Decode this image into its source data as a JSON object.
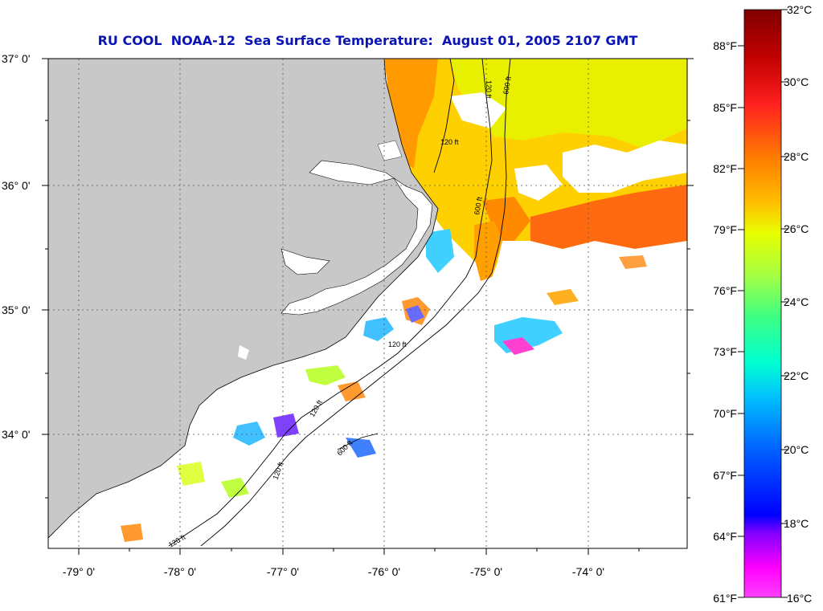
{
  "title": "RU COOL  NOAA-12  Sea Surface Temperature:  August 01, 2005 2107 GMT",
  "map": {
    "lat_ticks": [
      "37° 0'",
      "36° 0'",
      "35° 0'",
      "34° 0'"
    ],
    "lon_ticks": [
      "-79° 0'",
      "-78° 0'",
      "-77° 0'",
      "-76° 0'",
      "-75° 0'",
      "-74° 0'"
    ],
    "contour_labels": [
      "120 ft",
      "600 ft",
      "120 ft",
      "600 ft",
      "120 ft",
      "120 ft",
      "600 ft",
      "120 ft",
      "120 ft"
    ],
    "colors": {
      "land": "#c8c8c8",
      "water_no_data": "#ffffff",
      "title": "#0a14b4"
    }
  },
  "colorbar": {
    "fahrenheit": [
      "88°F",
      "85°F",
      "82°F",
      "79°F",
      "76°F",
      "73°F",
      "70°F",
      "67°F",
      "64°F",
      "61°F"
    ],
    "celsius": [
      "32°C",
      "30°C",
      "28°C",
      "26°C",
      "24°C",
      "22°C",
      "20°C",
      "18°C",
      "16°C"
    ],
    "gradient": [
      "#800000",
      "#c00000",
      "#ff2020",
      "#ff7a00",
      "#ffc000",
      "#e8ff00",
      "#a8ff40",
      "#40ff80",
      "#00ffd0",
      "#00c0ff",
      "#0060ff",
      "#0000ff",
      "#8000ff",
      "#ff00ff",
      "#ff40ff"
    ]
  }
}
